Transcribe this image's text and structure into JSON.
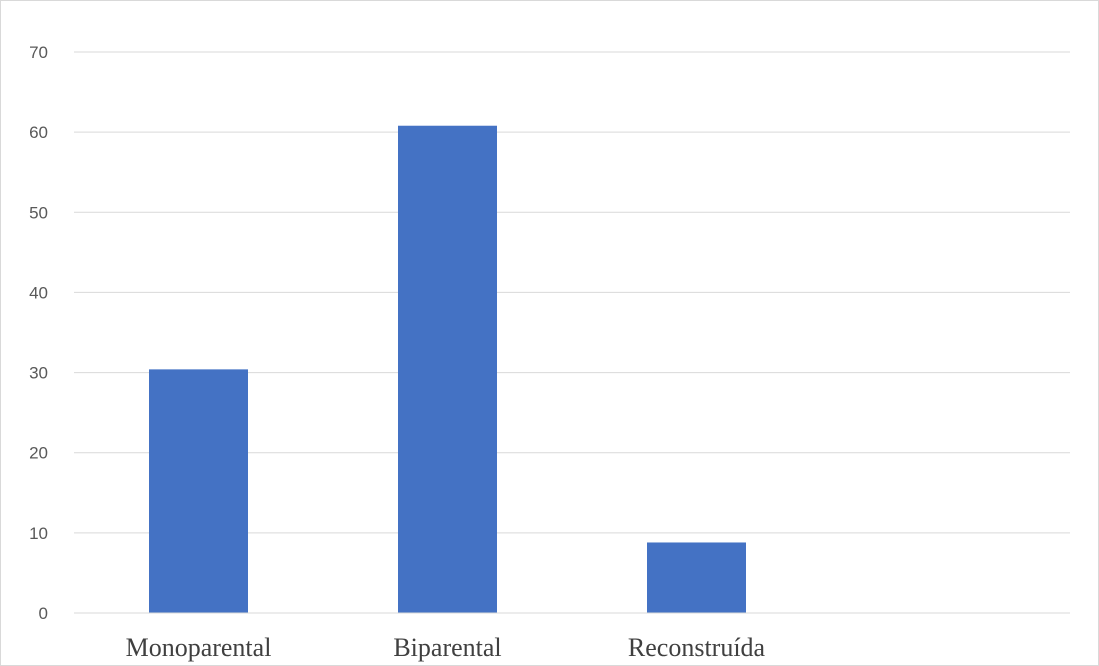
{
  "chart_data": {
    "type": "bar",
    "categories": [
      "Monoparental",
      "Biparental",
      "Reconstruída"
    ],
    "values": [
      30.4,
      60.8,
      8.8
    ],
    "y_ticks": [
      "0",
      "10",
      "20",
      "30",
      "40",
      "50",
      "60",
      "70"
    ],
    "ylim": [
      0,
      70
    ],
    "grid": true,
    "bar_color": "#4472c4",
    "gridline_color": "#d9d9d9",
    "title": "",
    "xlabel": "",
    "ylabel": ""
  }
}
